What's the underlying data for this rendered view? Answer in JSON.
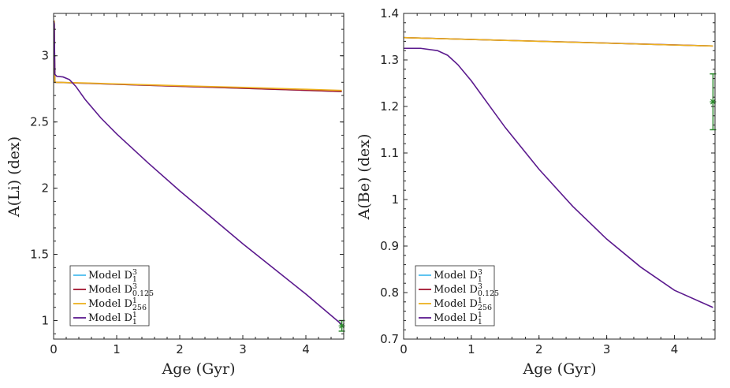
{
  "figure": {
    "colors": {
      "D1_3": "#4dbeee",
      "D0125_3": "#a2142f",
      "D256_1": "#edb120",
      "D1_1": "#5b1a8e",
      "obs": "#2e8b2e",
      "axis": "#262626"
    },
    "legend_entries": [
      {
        "key": "D1_3",
        "prefix": "Model D",
        "sub": "1",
        "sup": "3"
      },
      {
        "key": "D0125_3",
        "prefix": "Model D",
        "sub": "0.125",
        "sup": "3"
      },
      {
        "key": "D256_1",
        "prefix": "Model D",
        "sub": "256",
        "sup": "1"
      },
      {
        "key": "D1_1",
        "prefix": "Model D",
        "sub": "1",
        "sup": "1"
      }
    ]
  },
  "chart_data": [
    {
      "type": "line",
      "title": "",
      "xlabel": "Age (Gyr)",
      "ylabel": "A(Li) (dex)",
      "xlim": [
        0,
        4.6
      ],
      "ylim": [
        0.86,
        3.32
      ],
      "xticks": [
        0,
        1,
        2,
        3,
        4
      ],
      "yticks": [
        1,
        1.5,
        2,
        2.5,
        3
      ],
      "xtick_labels": [
        "0",
        "1",
        "2",
        "3",
        "4"
      ],
      "ytick_labels": [
        "1",
        "1.5",
        "2",
        "2.5",
        "3"
      ],
      "legend_position": "bottom-left",
      "series": [
        {
          "key": "D1_3",
          "name": "Model D1^3",
          "x": [
            0,
            0.01,
            0.02,
            4.57
          ],
          "y": [
            3.26,
            3.26,
            2.8,
            2.73
          ]
        },
        {
          "key": "D0125_3",
          "name": "Model D0.125^3",
          "x": [
            0,
            0.01,
            0.02,
            4.57
          ],
          "y": [
            3.26,
            3.26,
            2.8,
            2.73
          ]
        },
        {
          "key": "D256_1",
          "name": "Model D256^1",
          "x": [
            0,
            0.01,
            0.02,
            0.5,
            1,
            2,
            3,
            4,
            4.57
          ],
          "y": [
            3.26,
            3.26,
            2.8,
            2.795,
            2.787,
            2.774,
            2.761,
            2.747,
            2.738
          ]
        },
        {
          "key": "D1_1",
          "name": "Model D1^1",
          "x": [
            0,
            0.01,
            0.02,
            0.05,
            0.15,
            0.25,
            0.35,
            0.5,
            0.75,
            1,
            1.5,
            2,
            2.5,
            3,
            3.5,
            4,
            4.57
          ],
          "y": [
            3.26,
            3.24,
            2.86,
            2.845,
            2.84,
            2.82,
            2.77,
            2.67,
            2.53,
            2.41,
            2.19,
            1.98,
            1.78,
            1.58,
            1.39,
            1.2,
            0.97
          ]
        }
      ],
      "observation": {
        "x": 4.57,
        "y": 0.96,
        "err": 0.04
      }
    },
    {
      "type": "line",
      "title": "",
      "xlabel": "Age (Gyr)",
      "ylabel": "A(Be) (dex)",
      "xlim": [
        0,
        4.6
      ],
      "ylim": [
        0.7,
        1.4
      ],
      "xticks": [
        0,
        1,
        2,
        3,
        4
      ],
      "yticks": [
        0.7,
        0.8,
        0.9,
        1,
        1.1,
        1.2,
        1.3,
        1.4
      ],
      "xtick_labels": [
        "0",
        "1",
        "2",
        "3",
        "4"
      ],
      "ytick_labels": [
        "0.7",
        "0.8",
        "0.9",
        "1",
        "1.1",
        "1.2",
        "1.3",
        "1.4"
      ],
      "legend_position": "bottom-left",
      "series": [
        {
          "key": "D1_3",
          "name": "Model D1^3",
          "x": [
            0,
            4.57
          ],
          "y": [
            1.348,
            1.33
          ]
        },
        {
          "key": "D0125_3",
          "name": "Model D0.125^3",
          "x": [
            0,
            4.57
          ],
          "y": [
            1.348,
            1.33
          ]
        },
        {
          "key": "D256_1",
          "name": "Model D256^1",
          "x": [
            0,
            1,
            2,
            3,
            4,
            4.57
          ],
          "y": [
            1.348,
            1.344,
            1.34,
            1.336,
            1.332,
            1.33
          ]
        },
        {
          "key": "D1_1",
          "name": "Model D1^1",
          "x": [
            0,
            0.25,
            0.5,
            0.65,
            0.8,
            1,
            1.25,
            1.5,
            2,
            2.5,
            3,
            3.5,
            4,
            4.57
          ],
          "y": [
            1.325,
            1.325,
            1.32,
            1.31,
            1.29,
            1.255,
            1.205,
            1.155,
            1.065,
            0.985,
            0.915,
            0.855,
            0.805,
            0.768
          ]
        }
      ],
      "observation": {
        "x": 4.57,
        "y": 1.21,
        "err": 0.06
      }
    }
  ]
}
